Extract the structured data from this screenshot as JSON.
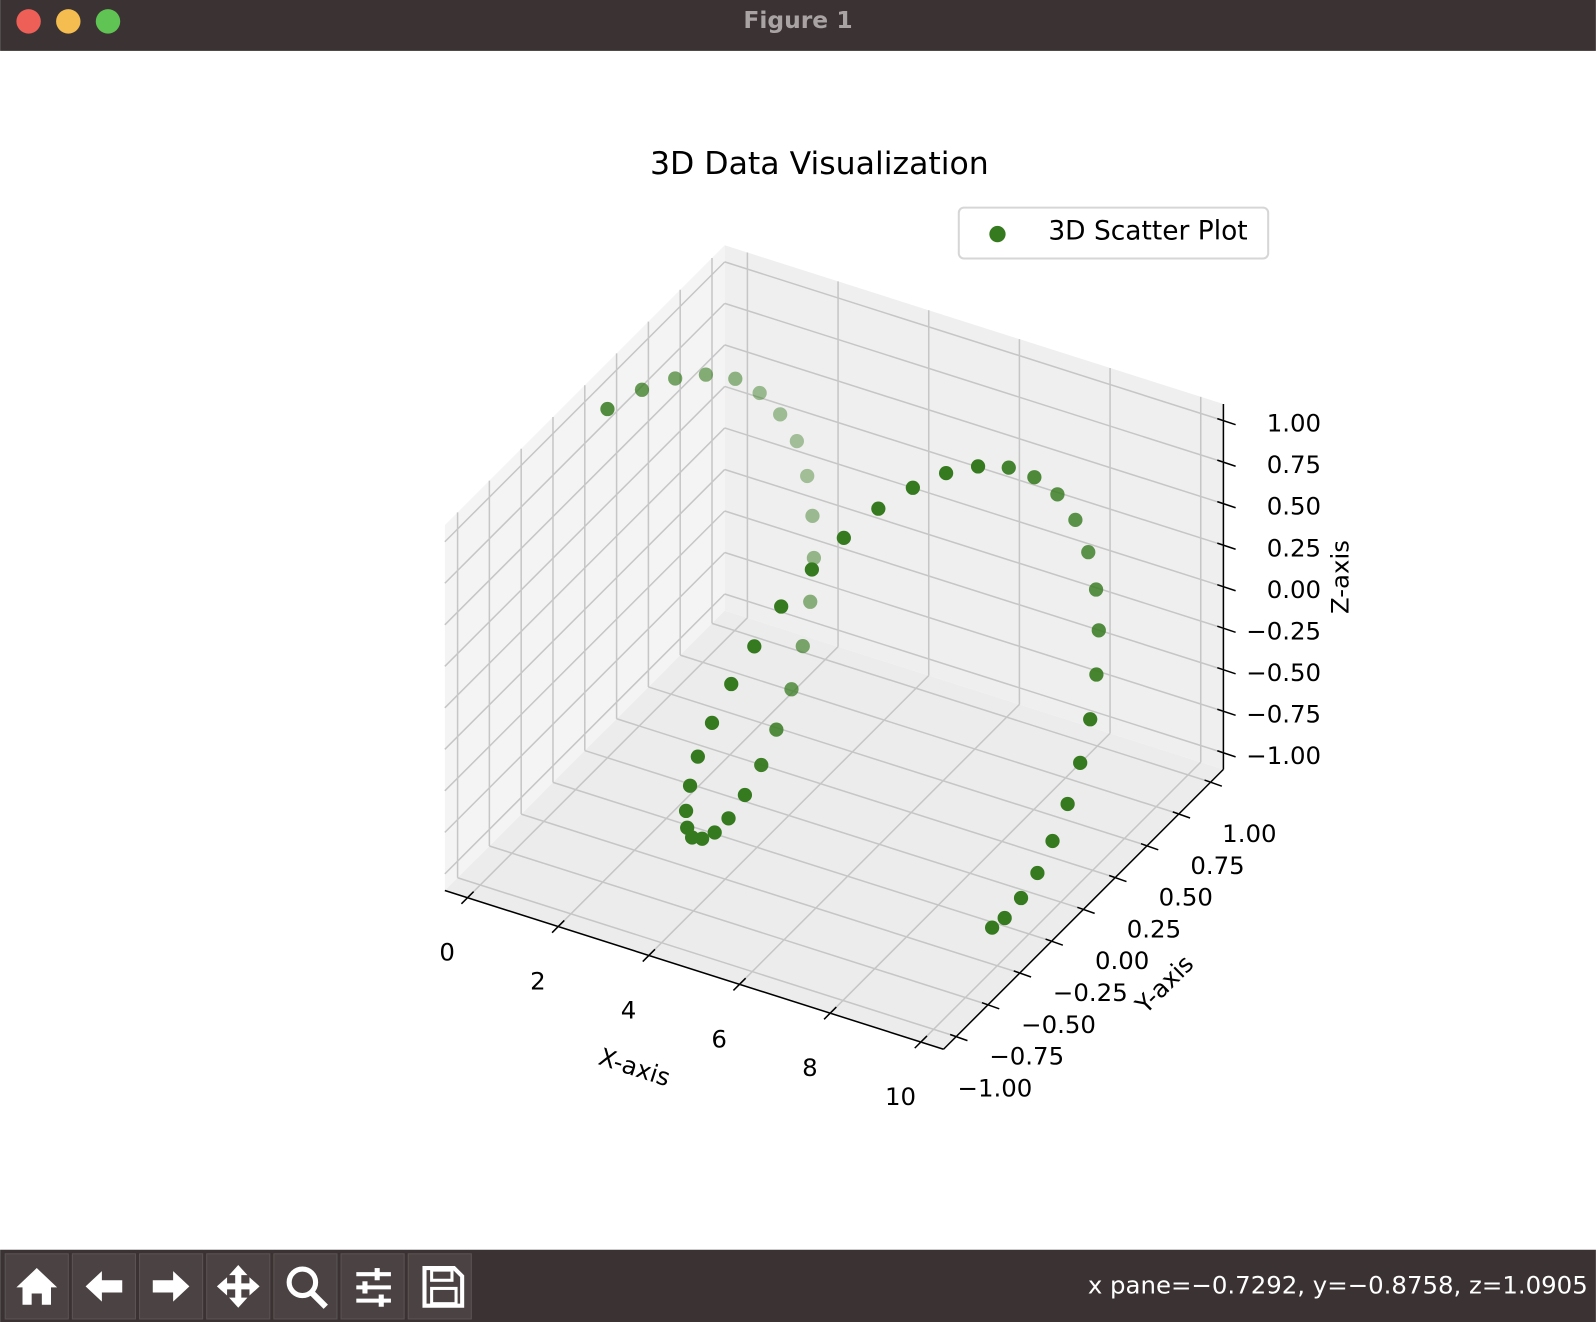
{
  "window": {
    "title": "Figure 1",
    "status_text": "x pane=−0.7292, y=−0.8758, z=1.0905"
  },
  "chart_data": {
    "type": "scatter3d",
    "title": "3D Data Visualization",
    "x_label": "X-axis",
    "y_label": "Y-axis",
    "z_label": "Z-axis",
    "legend": "upper right",
    "grid": true,
    "xlim": [
      -0.5,
      10.5
    ],
    "ylim": [
      -1.1,
      1.1
    ],
    "zlim": [
      -1.1,
      1.1
    ],
    "xticks": [
      0,
      2,
      4,
      6,
      8,
      10
    ],
    "yticks": [
      {
        "value": -1,
        "label": "−1.00"
      },
      {
        "value": -0.75,
        "label": "−0.75"
      },
      {
        "value": -0.5,
        "label": "−0.50"
      },
      {
        "value": -0.25,
        "label": "−0.25"
      },
      {
        "value": 0,
        "label": "0.00"
      },
      {
        "value": 0.25,
        "label": "0.25"
      },
      {
        "value": 0.5,
        "label": "0.50"
      },
      {
        "value": 0.75,
        "label": "0.75"
      },
      {
        "value": 1,
        "label": "1.00"
      }
    ],
    "zticks": [
      {
        "value": -1,
        "label": "−1.00"
      },
      {
        "value": -0.75,
        "label": "−0.75"
      },
      {
        "value": -0.5,
        "label": "−0.50"
      },
      {
        "value": -0.25,
        "label": "−0.25"
      },
      {
        "value": 0,
        "label": "0.00"
      },
      {
        "value": 0.25,
        "label": "0.25"
      },
      {
        "value": 0.5,
        "label": "0.50"
      },
      {
        "value": 0.75,
        "label": "0.75"
      },
      {
        "value": 1,
        "label": "1.00"
      }
    ],
    "series": [
      {
        "name": "3D Scatter Plot",
        "color": "#367a1f",
        "x": [
          0,
          0.2,
          0.4,
          0.6,
          0.8,
          1.0,
          1.2,
          1.4,
          1.6,
          1.8,
          2.0,
          2.2,
          2.4,
          2.6,
          2.8,
          3.0,
          3.2,
          3.4,
          3.6,
          3.8,
          4.0,
          4.2,
          4.4,
          4.6,
          4.8,
          5.0,
          5.2,
          5.4,
          5.6,
          5.8,
          6.0,
          6.2,
          6.4,
          6.6,
          6.8,
          7.0,
          7.2,
          7.4,
          7.6,
          7.8,
          8.0,
          8.2,
          8.4,
          8.6,
          8.8,
          9.0,
          9.2,
          9.4,
          9.6,
          9.8,
          10.0
        ],
        "y": [
          0,
          0.2,
          0.39,
          0.56,
          0.72,
          0.84,
          0.93,
          0.99,
          1.0,
          0.97,
          0.91,
          0.81,
          0.68,
          0.52,
          0.33,
          0.14,
          -0.06,
          -0.26,
          -0.44,
          -0.61,
          -0.76,
          -0.87,
          -0.95,
          -0.99,
          -1.0,
          -0.96,
          -0.88,
          -0.77,
          -0.63,
          -0.46,
          -0.28,
          -0.08,
          0.12,
          0.31,
          0.49,
          0.66,
          0.79,
          0.9,
          0.97,
          1.0,
          0.99,
          0.94,
          0.85,
          0.73,
          0.58,
          0.41,
          0.22,
          0.03,
          -0.17,
          -0.37,
          -0.54
        ],
        "z": [
          1.0,
          0.98,
          0.92,
          0.83,
          0.7,
          0.54,
          0.36,
          0.17,
          -0.03,
          -0.23,
          -0.42,
          -0.59,
          -0.74,
          -0.86,
          -0.94,
          -0.99,
          -1.0,
          -0.97,
          -0.9,
          -0.79,
          -0.65,
          -0.49,
          -0.31,
          -0.11,
          0.09,
          0.28,
          0.47,
          0.63,
          0.78,
          0.89,
          0.96,
          1.0,
          0.99,
          0.95,
          0.87,
          0.75,
          0.61,
          0.44,
          0.25,
          0.05,
          -0.15,
          -0.34,
          -0.52,
          -0.68,
          -0.81,
          -0.91,
          -0.97,
          -1.0,
          -0.98,
          -0.93,
          -0.84
        ]
      }
    ]
  }
}
